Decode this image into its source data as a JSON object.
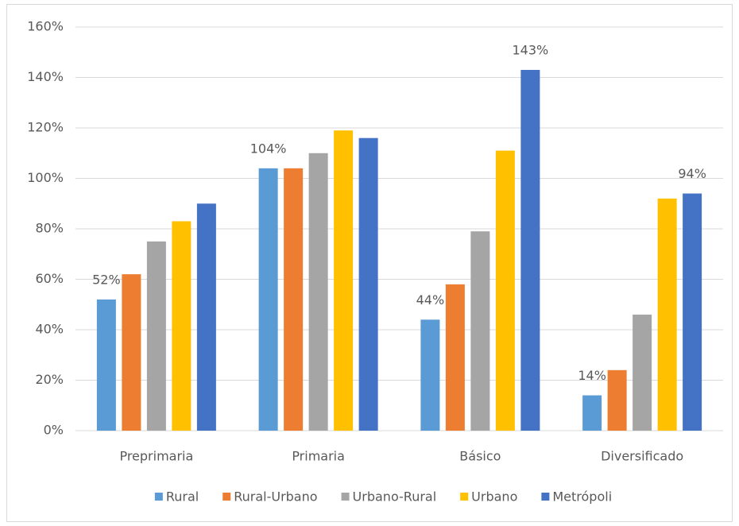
{
  "chart_data": {
    "type": "bar",
    "categories": [
      "Preprimaria",
      "Primaria",
      "Básico",
      "Diversificado"
    ],
    "series": [
      {
        "name": "Rural",
        "color": "#5b9bd5",
        "values": [
          52,
          104,
          44,
          14
        ],
        "value_labels": [
          "52%",
          "104%",
          "44%",
          "14%"
        ]
      },
      {
        "name": "Rural-Urbano",
        "color": "#ed7d31",
        "values": [
          62,
          104,
          58,
          24
        ],
        "value_labels": [
          null,
          null,
          null,
          null
        ]
      },
      {
        "name": "Urbano-Rural",
        "color": "#a5a5a5",
        "values": [
          75,
          110,
          79,
          46
        ],
        "value_labels": [
          null,
          null,
          null,
          null
        ]
      },
      {
        "name": "Urbano",
        "color": "#ffc000",
        "values": [
          83,
          119,
          111,
          92
        ],
        "value_labels": [
          null,
          null,
          null,
          null
        ]
      },
      {
        "name": "Metrópoli",
        "color": "#4472c4",
        "values": [
          90,
          116,
          143,
          94
        ],
        "value_labels": [
          null,
          null,
          "143%",
          "94%"
        ]
      }
    ],
    "ylim": [
      0,
      160
    ],
    "yticks": [
      {
        "value": 0,
        "label": "0%"
      },
      {
        "value": 20,
        "label": "20%"
      },
      {
        "value": 40,
        "label": "40%"
      },
      {
        "value": 60,
        "label": "60%"
      },
      {
        "value": 80,
        "label": "80%"
      },
      {
        "value": 100,
        "label": "100%"
      },
      {
        "value": 120,
        "label": "120%"
      },
      {
        "value": 140,
        "label": "140%"
      },
      {
        "value": 160,
        "label": "160%"
      }
    ],
    "grid": true,
    "legend": "bottom"
  }
}
